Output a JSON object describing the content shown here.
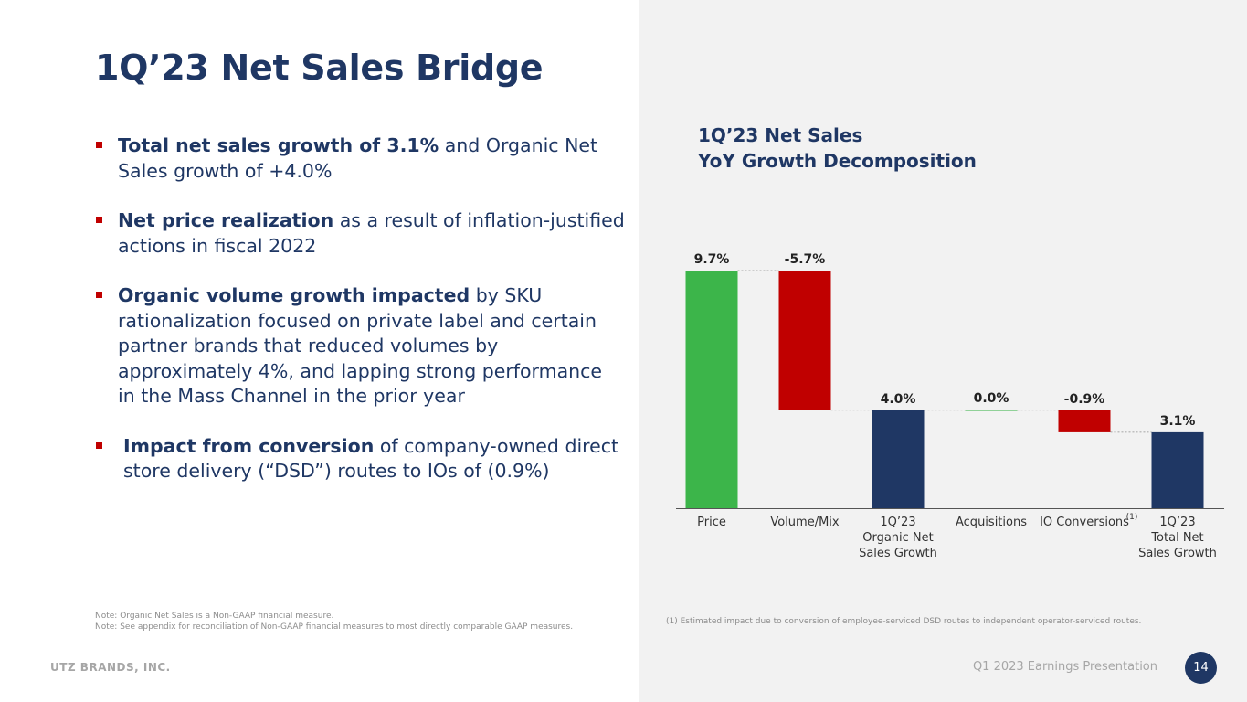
{
  "page": {
    "title": "1Q’23 Net Sales Bridge",
    "company": "UTZ BRANDS, INC.",
    "presentation": "Q1 2023 Earnings Presentation",
    "page_number": "14"
  },
  "bullets": [
    {
      "bold": "Total net sales growth of 3.1%",
      "rest": " and Organic Net Sales growth of +4.0%"
    },
    {
      "bold": "Net price realization",
      "rest": " as a result of inflation-justified actions in fiscal 2022"
    },
    {
      "bold": "Organic volume growth impacted",
      "rest": " by SKU rationalization focused on private label and certain partner brands that reduced volumes by approximately 4%, and lapping strong performance in the Mass Channel in the prior year"
    },
    {
      "bold": "Impact from conversion",
      "rest": " of company-owned direct store delivery (“DSD”) routes to IOs of (0.9%)"
    }
  ],
  "notes": {
    "line1": "Note:  Organic Net Sales is a Non-GAAP financial measure.",
    "line2": "Note: See appendix for reconciliation of Non-GAAP financial measures to most directly comparable GAAP measures."
  },
  "chart_title": {
    "line1": "1Q’23 Net Sales",
    "line2": "YoY Growth Decomposition"
  },
  "footnote": "(1) Estimated impact due to conversion of employee-serviced DSD routes to independent operator-serviced routes.",
  "colors": {
    "navy": "#1f3764",
    "green": "#3cb54a",
    "red": "#c00000",
    "panel": "#f2f2f2"
  },
  "chart_data": {
    "type": "waterfall",
    "title": "1Q’23 Net Sales YoY Growth Decomposition",
    "unit": "%",
    "ylim": [
      0,
      9.7
    ],
    "categories": [
      {
        "lines": [
          "Price"
        ]
      },
      {
        "lines": [
          "Volume/Mix"
        ]
      },
      {
        "lines": [
          "1Q’23",
          "Organic Net",
          "Sales Growth"
        ]
      },
      {
        "lines": [
          "Acquisitions"
        ]
      },
      {
        "lines": [
          "IO Conversions"
        ],
        "superscript": "(1)"
      },
      {
        "lines": [
          "1Q’23",
          "Total Net",
          "Sales Growth"
        ]
      }
    ],
    "values": [
      9.7,
      -5.7,
      4.0,
      0.0,
      -0.9,
      3.1
    ],
    "labels": [
      "9.7%",
      "-5.7%",
      "4.0%",
      "0.0%",
      "-0.9%",
      "3.1%"
    ],
    "kinds": [
      "increase",
      "decrease",
      "total",
      "increase",
      "decrease",
      "total"
    ]
  }
}
